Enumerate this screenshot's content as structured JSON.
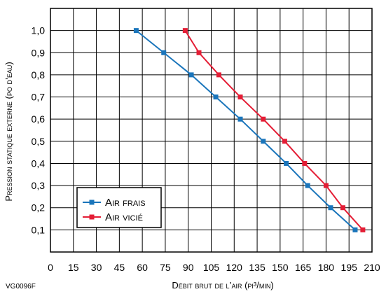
{
  "chart_data": {
    "type": "line",
    "xlabel": "Débit brut de l’air (pi³/min)",
    "ylabel": "Pression statique externe (po d’eau)",
    "xlim": [
      0,
      210
    ],
    "ylim": [
      0,
      1.1
    ],
    "x_ticks": [
      0,
      15,
      30,
      45,
      60,
      75,
      90,
      105,
      120,
      135,
      150,
      165,
      180,
      195,
      210
    ],
    "y_ticks": [
      {
        "value": 0.1,
        "label": "0,1"
      },
      {
        "value": 0.2,
        "label": "0,2"
      },
      {
        "value": 0.3,
        "label": "0,3"
      },
      {
        "value": 0.4,
        "label": "0,4"
      },
      {
        "value": 0.5,
        "label": "0,5"
      },
      {
        "value": 0.6,
        "label": "0,6"
      },
      {
        "value": 0.7,
        "label": "0,7"
      },
      {
        "value": 0.8,
        "label": "0,8"
      },
      {
        "value": 0.9,
        "label": "0,9"
      },
      {
        "value": 1.0,
        "label": "1,0"
      }
    ],
    "grid": true,
    "legend_position": "bottom-left",
    "series": [
      {
        "name": "Air frais",
        "color": "#1a75bb",
        "x": [
          56,
          74,
          92,
          108,
          124,
          139,
          154,
          168,
          183,
          199
        ],
        "y": [
          1.0,
          0.9,
          0.8,
          0.7,
          0.6,
          0.5,
          0.4,
          0.3,
          0.2,
          0.1
        ]
      },
      {
        "name": "Air vicié",
        "color": "#e41d35",
        "x": [
          88,
          97,
          110,
          124,
          139,
          153,
          166,
          180,
          191,
          204
        ],
        "y": [
          1.0,
          0.9,
          0.8,
          0.7,
          0.6,
          0.5,
          0.4,
          0.3,
          0.2,
          0.1
        ]
      }
    ]
  },
  "figure_code": "VG0096F"
}
